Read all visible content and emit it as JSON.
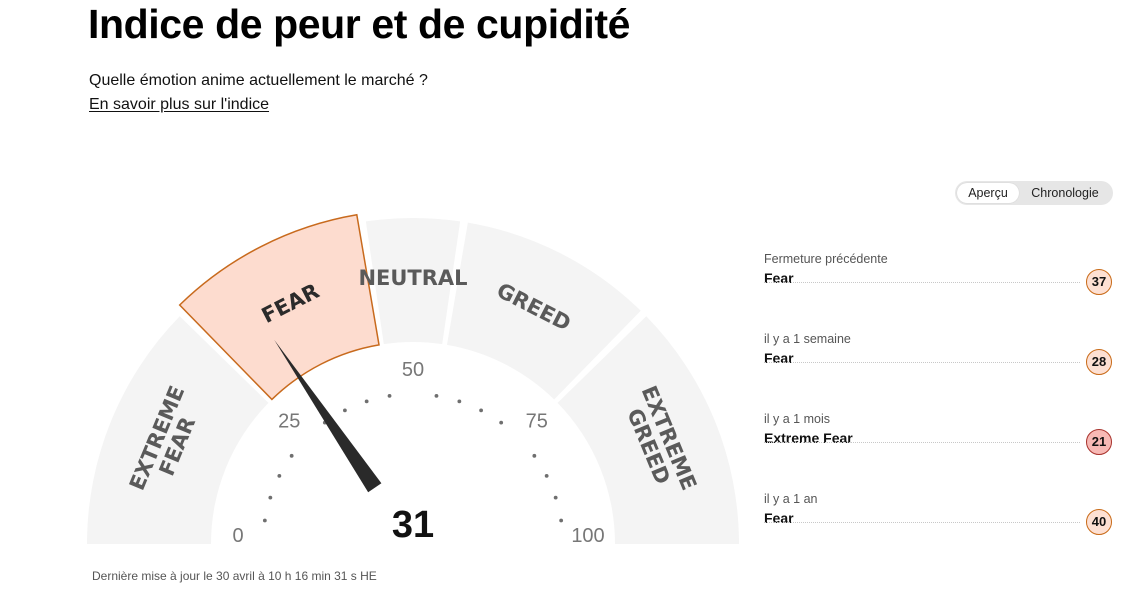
{
  "header": {
    "title": "Indice de peur et de cupidité",
    "subtitle": "Quelle émotion anime actuellement le marché ?",
    "link_label": "En savoir plus sur l'indice"
  },
  "view_toggle": {
    "options": [
      "Aperçu",
      "Chronologie"
    ],
    "active": "Aperçu"
  },
  "gauge": {
    "value": 31,
    "min": 0,
    "max": 100,
    "active_segment": "FEAR",
    "segments": [
      {
        "lines": [
          "EXTREME",
          "FEAR"
        ],
        "from": 0,
        "to": 25
      },
      {
        "lines": [
          "FEAR"
        ],
        "from": 25,
        "to": 45
      },
      {
        "lines": [
          "NEUTRAL"
        ],
        "from": 45,
        "to": 55
      },
      {
        "lines": [
          "GREED"
        ],
        "from": 55,
        "to": 75
      },
      {
        "lines": [
          "EXTREME",
          "GREED"
        ],
        "from": 75,
        "to": 100
      }
    ],
    "tick_labels": [
      "0",
      "25",
      "50",
      "75",
      "100"
    ],
    "colors": {
      "segment": "#f4f4f4",
      "active_fill": "#fddccf",
      "active_stroke": "#c86a1d",
      "needle": "#2a2a2a"
    }
  },
  "last_updated": "Dernière mise à jour le 30 avril à 10 h 16 min 31 s HE",
  "history": [
    {
      "period": "Fermeture précédente",
      "rating": "Fear",
      "value": "37"
    },
    {
      "period": "il y a 1 semaine",
      "rating": "Fear",
      "value": "28"
    },
    {
      "period": "il y a 1 mois",
      "rating": "Extreme Fear",
      "value": "21"
    },
    {
      "period": "il y a 1 an",
      "rating": "Fear",
      "value": "40"
    }
  ]
}
